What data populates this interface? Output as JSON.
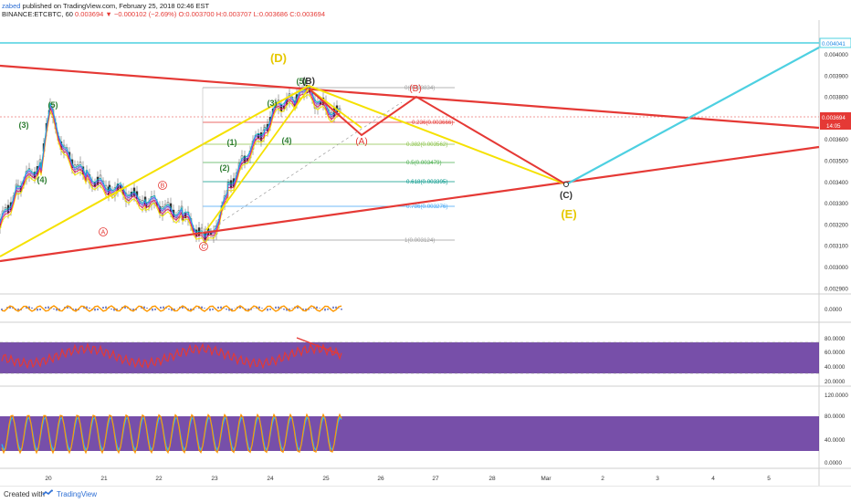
{
  "header": {
    "user": "zabed",
    "published": " published on TradingView.com, February 25, 2018 02:46 EST",
    "symbol": "BINANCE:ETCBTC, 60 ",
    "price": "0.003694",
    "change": "−0.000102 (−2.69%)",
    "ohlc": "O:0.003700 H:0.003707 L:0.003686 C:0.003694"
  },
  "price_axis": {
    "ticks": [
      "0.004000",
      "0.003900",
      "0.003800",
      "0.003700",
      "0.003600",
      "0.003500",
      "0.003400",
      "0.003300",
      "0.003200",
      "0.003100",
      "0.003000",
      "0.002900"
    ],
    "top_label": "0.004041",
    "last_label": "0.003694",
    "countdown": "14:05"
  },
  "time_axis": [
    "20",
    "21",
    "22",
    "23",
    "24",
    "25",
    "26",
    "27",
    "28",
    "Mar",
    "2",
    "3",
    "4",
    "5"
  ],
  "fib": [
    {
      "label": "0(0.003834)",
      "color": "#9e9e9e"
    },
    {
      "label": "0.236(0.003666)",
      "color": "#e53935"
    },
    {
      "label": "0.382(0.003562)",
      "color": "#8bc34a"
    },
    {
      "label": "0.5(0.003479)",
      "color": "#4caf50"
    },
    {
      "label": "0.618(0.003395)",
      "color": "#009688"
    },
    {
      "label": "0.786(0.003276)",
      "color": "#42a5f5"
    },
    {
      "label": "1(0.003124)",
      "color": "#9e9e9e"
    }
  ],
  "wave_labels": {
    "green": [
      "(3)",
      "(4)",
      "(5)",
      "(1)",
      "(2)",
      "(3)",
      "(4)",
      "(5)"
    ],
    "yellow": [
      "(D)",
      "(E)",
      "(B)",
      "(C)"
    ],
    "red_circle": [
      "A",
      "B",
      "C"
    ],
    "red_paren": [
      "(A)",
      "(B)"
    ]
  },
  "panes": {
    "macd_ticks": [
      "0.0000"
    ],
    "rsi_ticks": [
      "80.0000",
      "60.0000",
      "40.0000",
      "20.0000"
    ],
    "stoch_ticks": [
      "120.0000",
      "80.0000",
      "40.0000",
      "0.0000"
    ]
  },
  "colors": {
    "red": "#e53935",
    "yellow": "#f5e100",
    "cyan": "#4dd0e1",
    "purple": "#4a148c"
  },
  "footer": {
    "created": "Created with",
    "brand": "TradingView"
  }
}
